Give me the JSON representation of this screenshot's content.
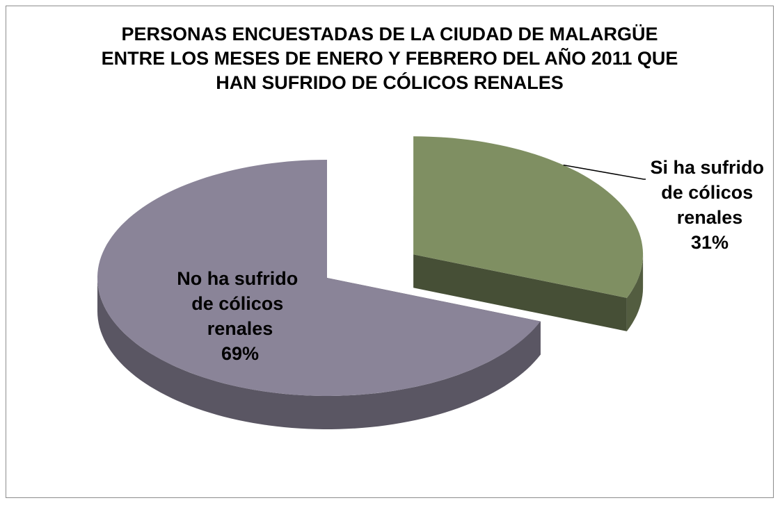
{
  "chart_data": {
    "type": "pie",
    "title": "PERSONAS ENCUESTADAS DE LA CIUDAD DE MALARGÜE ENTRE LOS MESES DE ENERO Y FEBRERO DEL AÑO 2011 QUE HAN SUFRIDO DE CÓLICOS RENALES",
    "categories": [
      "No ha sufrido de cólicos renales",
      "Si ha sufrido de cólicos renales"
    ],
    "values": [
      69,
      31
    ],
    "value_labels": [
      "69%",
      "31%"
    ],
    "colors": [
      "#8a8498",
      "#7f8f62"
    ],
    "explode": [
      false,
      true
    ]
  }
}
